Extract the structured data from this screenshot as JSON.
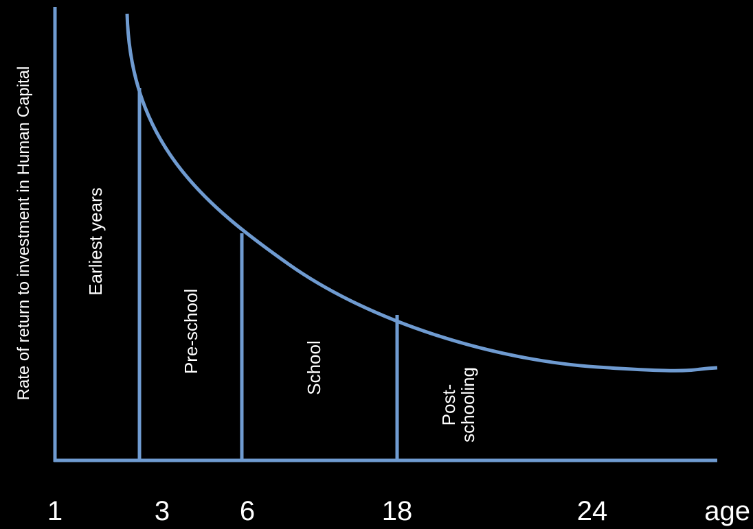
{
  "chart_data": {
    "type": "line",
    "ylabel": "Rate of return to investment in Human Capital",
    "xlabel": "age",
    "x_ticks": [
      "1",
      "3",
      "6",
      "18",
      "24"
    ],
    "stage_boundaries": [
      "3",
      "6",
      "18"
    ],
    "regions": [
      {
        "label": "Earliest years"
      },
      {
        "label": "Pre-school"
      },
      {
        "label": "School"
      },
      {
        "label": "Post-",
        "label_line2": "schooling"
      }
    ],
    "curve": "decreasing, convex",
    "colors": {
      "line": "#6f9bd1",
      "background": "#000000",
      "text": "#ffffff"
    }
  }
}
